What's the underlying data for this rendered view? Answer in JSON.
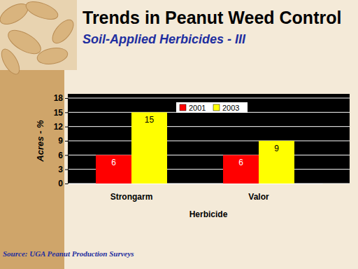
{
  "chart_data": {
    "type": "bar",
    "title": "Trends in Peanut Weed Control",
    "subtitle": "Soil-Applied Herbicides - III",
    "x_label": "Herbicide",
    "y_label": "Acres - %",
    "source": "Source: UGA Peanut Production Surveys",
    "categories": [
      "Strongarm",
      "Valor"
    ],
    "series": [
      {
        "name": "2001",
        "color": "#ff0000",
        "values": [
          6,
          6
        ]
      },
      {
        "name": "2003",
        "color": "#ffff00",
        "values": [
          15,
          9
        ]
      }
    ],
    "ylim": [
      0,
      18
    ],
    "yticks": [
      0,
      3,
      6,
      9,
      12,
      15,
      18
    ],
    "grid": true,
    "legend": "top",
    "data_labels": true
  }
}
